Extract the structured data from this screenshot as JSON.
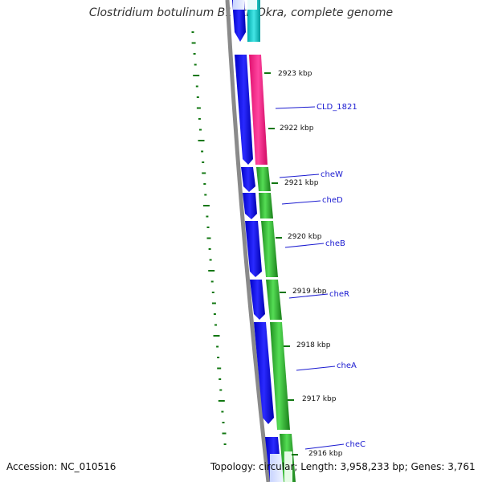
{
  "title": "Clostridium botulinum B1 str. Okra, complete genome",
  "footer": {
    "accession": "Accession: NC_010516",
    "topology": "Topology: circular; Length: 3,958,233 bp; Genes: 3,761"
  },
  "scale": {
    "ticks": [
      "2923 kbp",
      "2922 kbp",
      "2921 kbp",
      "2920 kbp",
      "2919 kbp",
      "2918 kbp",
      "2917 kbp",
      "2916 kbp"
    ]
  },
  "genes": [
    {
      "label": "",
      "kind": "cds-segment"
    },
    {
      "label": "CLD_1821",
      "kind": "cds-segment"
    },
    {
      "label": "cheW",
      "kind": "cds-segment"
    },
    {
      "label": "cheD",
      "kind": "cds-segment"
    },
    {
      "label": "cheB",
      "kind": "cds-segment"
    },
    {
      "label": "cheR",
      "kind": "cds-segment"
    },
    {
      "label": "cheA",
      "kind": "cds-segment"
    },
    {
      "label": "cheC",
      "kind": "cds-segment"
    }
  ],
  "colors": {
    "cds_strand": "#1010ee",
    "feature_green": "#33bb33",
    "feature_pink": "#ff2a8a",
    "feature_cyan": "#11cccc",
    "backbone": "#888888",
    "gc_skew": "#117711",
    "label_line": "#1a1ad0",
    "label_text": "#1a1ad0",
    "tick_text": "#111111"
  }
}
